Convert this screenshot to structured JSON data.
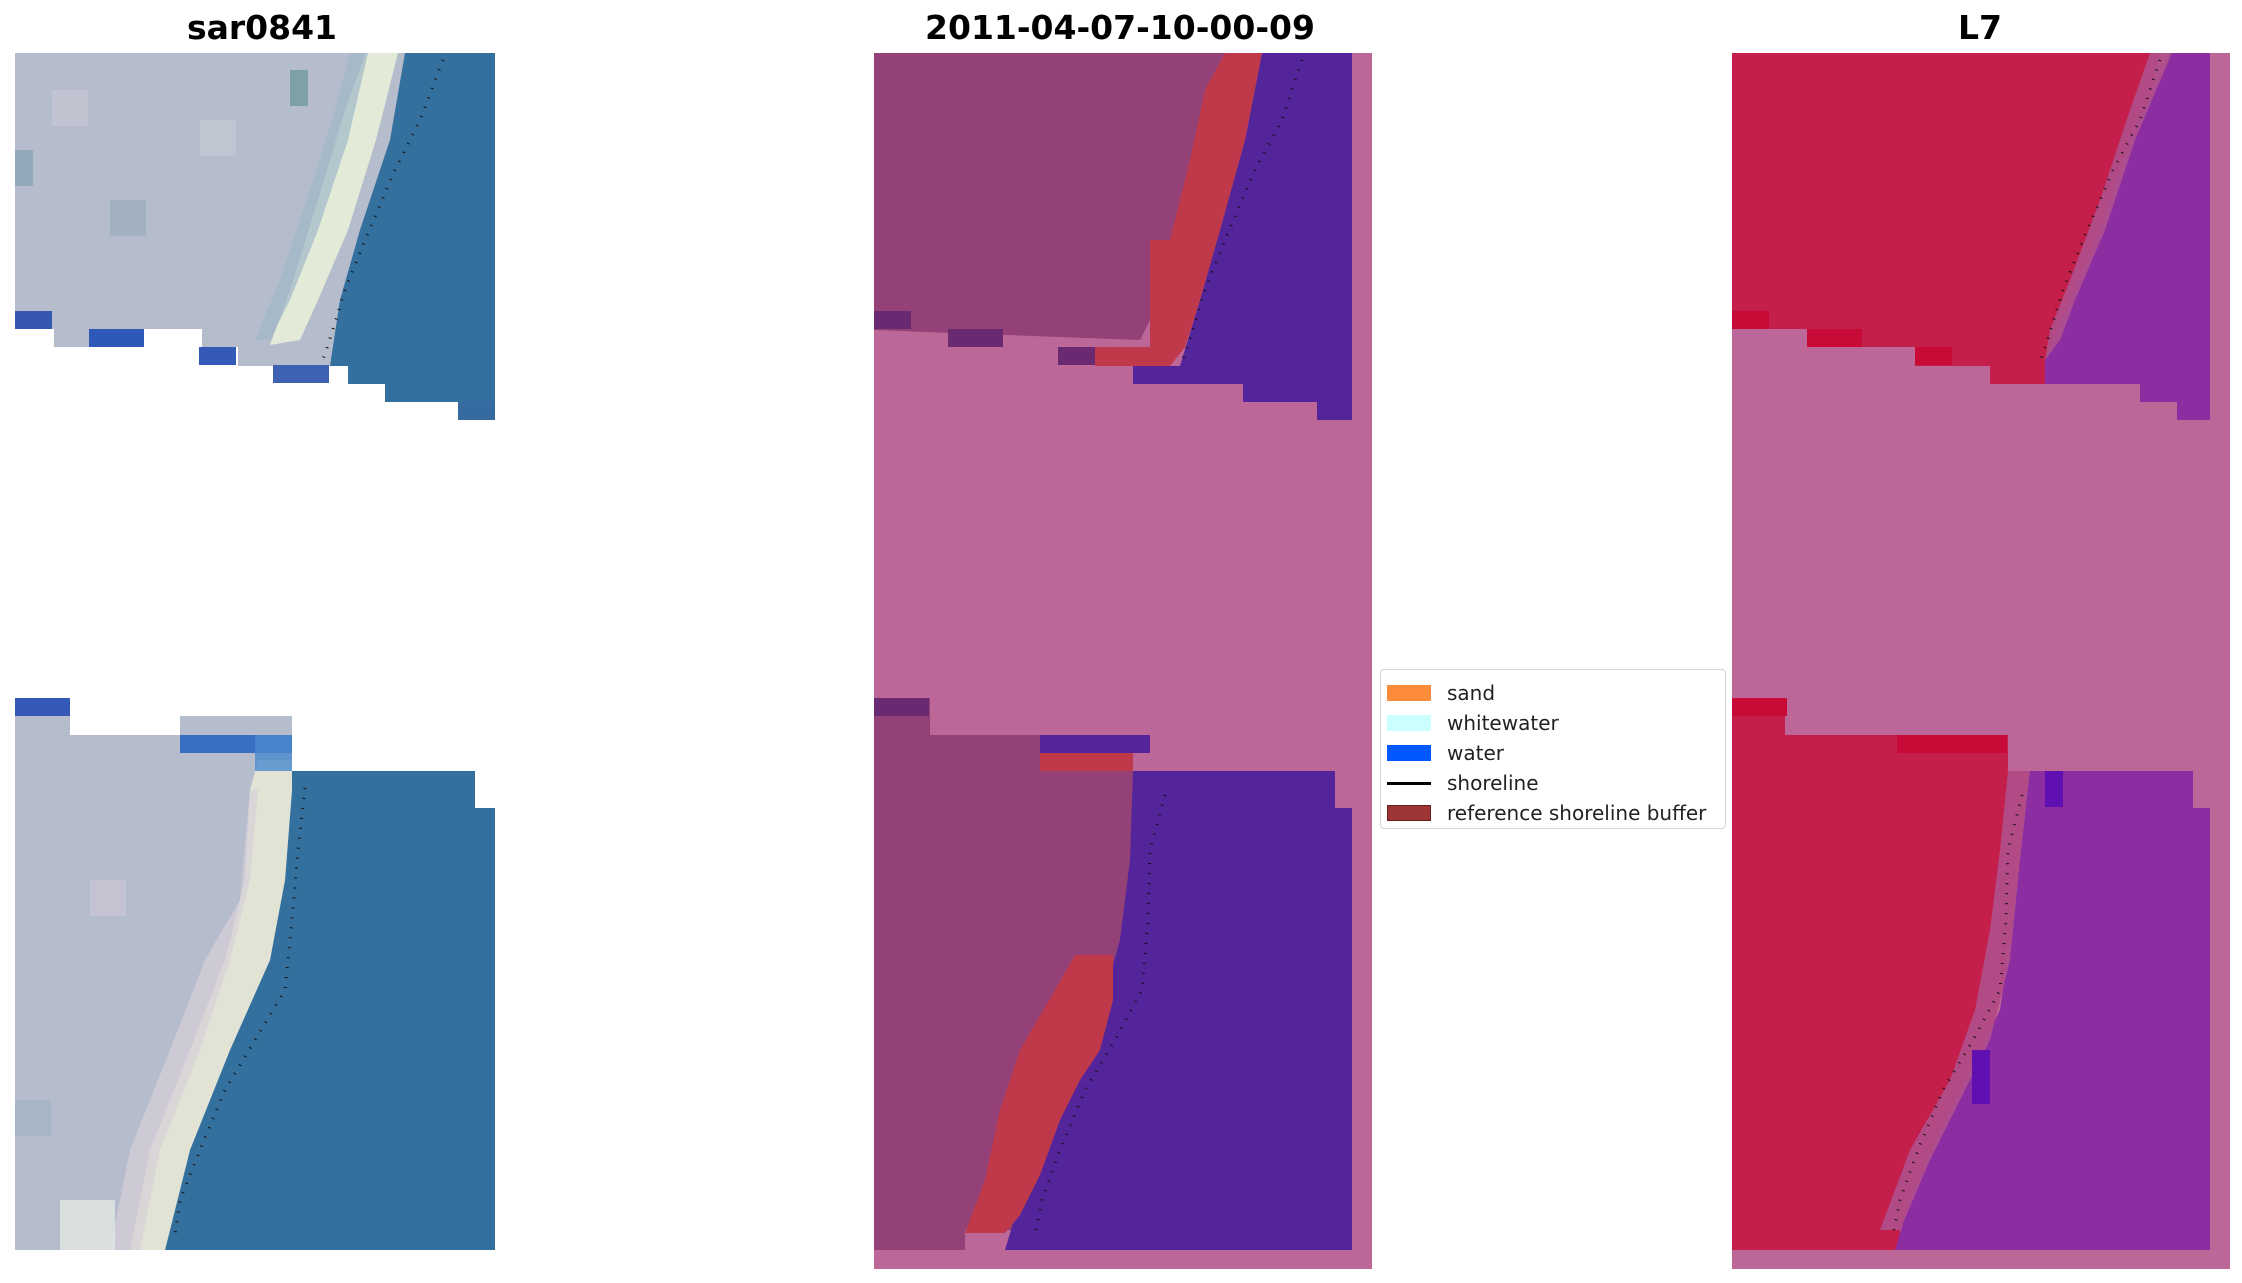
{
  "panels": [
    {
      "title": "sar0841"
    },
    {
      "title": "2011-04-07-10-00-09"
    },
    {
      "title": "L7"
    }
  ],
  "legend": {
    "placement": "center",
    "entries": [
      {
        "label": "sand",
        "color": "#fd8c3a",
        "kind": "patch"
      },
      {
        "label": "whitewater",
        "color": "#ccffff",
        "kind": "patch"
      },
      {
        "label": "water",
        "color": "#0059ff",
        "kind": "patch"
      },
      {
        "label": "shoreline",
        "color": "#000000",
        "kind": "line"
      },
      {
        "label": "reference shoreline buffer",
        "color": "#9e3535",
        "kind": "patch"
      }
    ]
  },
  "colors": {
    "nodata_pink": "#bd6698",
    "classified_water": "#54249a",
    "buffer_red": "#c0394a",
    "land_purple": "#934176",
    "ndwi_red": "#c41e4a",
    "ndwi_purple": "#8c2ea2",
    "rgb_water": "#2e6a9a",
    "rgb_sand": "#b7bccd"
  }
}
